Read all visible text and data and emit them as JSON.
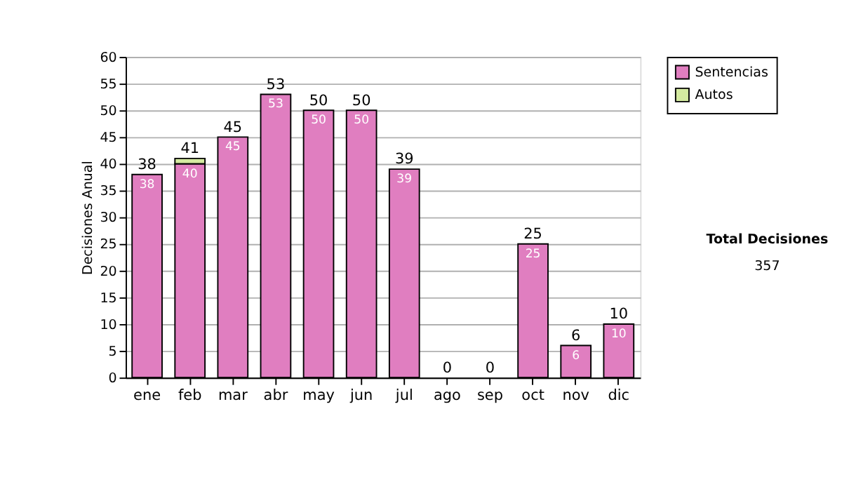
{
  "chart_data": {
    "type": "bar",
    "stacked": true,
    "categories": [
      "ene",
      "feb",
      "mar",
      "abr",
      "may",
      "jun",
      "jul",
      "ago",
      "sep",
      "oct",
      "nov",
      "dic"
    ],
    "ylabel": "Decisiones Anual",
    "series": [
      {
        "name": "Sentencias",
        "color": "#e07ec0",
        "values": [
          38,
          40,
          45,
          53,
          50,
          50,
          39,
          0,
          0,
          25,
          6,
          10
        ],
        "value_labels": [
          "38",
          "40",
          "45",
          "53",
          "50",
          "50",
          "39",
          null,
          null,
          "25",
          "6",
          "10"
        ]
      },
      {
        "name": "Autos",
        "color": "#d4eaa0",
        "values": [
          0,
          1,
          0,
          0,
          0,
          0,
          0,
          0,
          0,
          0,
          0,
          0
        ]
      }
    ],
    "totals": [
      "38",
      "41",
      "45",
      "53",
      "50",
      "50",
      "39",
      "0",
      "0",
      "25",
      "6",
      "10"
    ],
    "ylim": [
      0,
      60
    ],
    "yticks": [
      0,
      5,
      10,
      15,
      20,
      25,
      30,
      35,
      40,
      45,
      50,
      55,
      60
    ],
    "grid": "y",
    "legend": "right",
    "annotations": [
      "Total Decisiones",
      "357"
    ]
  }
}
